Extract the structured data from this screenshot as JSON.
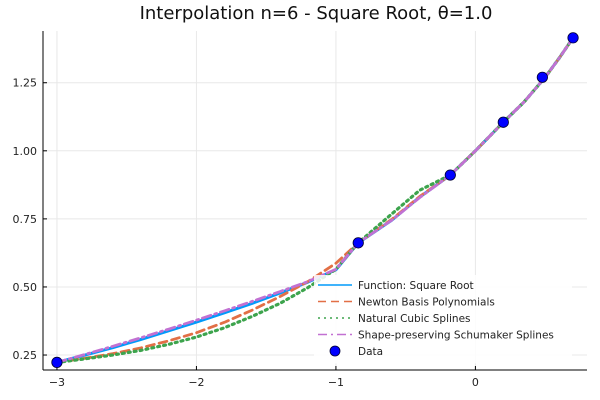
{
  "chart_data": {
    "type": "line",
    "title": "Interpolation n=6 - Square Root, θ=1.0",
    "xlabel": "",
    "ylabel": "",
    "xlim": [
      -3.1,
      0.8
    ],
    "ylim": [
      0.195,
      1.44
    ],
    "grid": true,
    "legend_position": "bottom-right",
    "x_ticks": [
      -3,
      -2,
      -1,
      0
    ],
    "x_tick_labels": [
      "−3",
      "−2",
      "−1",
      "0"
    ],
    "y_ticks": [
      0.25,
      0.5,
      0.75,
      1.0,
      1.25
    ],
    "y_tick_labels": [
      "0.25",
      "0.50",
      "0.75",
      "1.00",
      "1.25"
    ],
    "series": [
      {
        "name": "Function: Square Root",
        "color": "#009AFA",
        "style": "solid",
        "x": [
          -3.0,
          -2.8,
          -2.6,
          -2.4,
          -2.2,
          -2.0,
          -1.8,
          -1.6,
          -1.4,
          -1.2,
          -1.0,
          -0.84,
          -0.6,
          -0.4,
          -0.18,
          0.0,
          0.2,
          0.35,
          0.5,
          0.6,
          0.7
        ],
        "y": [
          0.223,
          0.25,
          0.277,
          0.307,
          0.339,
          0.371,
          0.405,
          0.44,
          0.478,
          0.518,
          0.563,
          0.662,
          0.745,
          0.83,
          0.911,
          1.0,
          1.105,
          1.18,
          1.27,
          1.34,
          1.415
        ]
      },
      {
        "name": "Newton Basis Polynomials",
        "color": "#E26F46",
        "style": "dashed",
        "x": [
          -3.0,
          -2.8,
          -2.6,
          -2.4,
          -2.2,
          -2.0,
          -1.8,
          -1.6,
          -1.4,
          -1.2,
          -1.0,
          -0.84,
          -0.6,
          -0.4,
          -0.18,
          0.0,
          0.2,
          0.35,
          0.5,
          0.6,
          0.7
        ],
        "y": [
          0.223,
          0.238,
          0.255,
          0.276,
          0.302,
          0.332,
          0.37,
          0.415,
          0.465,
          0.52,
          0.587,
          0.662,
          0.748,
          0.832,
          0.911,
          1.0,
          1.105,
          1.18,
          1.27,
          1.34,
          1.415
        ]
      },
      {
        "name": "Natural Cubic Splines",
        "color": "#3DA44D",
        "style": "dotted",
        "x": [
          -3.0,
          -2.8,
          -2.6,
          -2.4,
          -2.2,
          -2.0,
          -1.8,
          -1.6,
          -1.4,
          -1.2,
          -1.0,
          -0.84,
          -0.6,
          -0.4,
          -0.18,
          0.0,
          0.2,
          0.35,
          0.5,
          0.6,
          0.7
        ],
        "y": [
          0.223,
          0.236,
          0.25,
          0.267,
          0.289,
          0.316,
          0.35,
          0.392,
          0.44,
          0.498,
          0.565,
          0.662,
          0.768,
          0.855,
          0.911,
          1.0,
          1.105,
          1.18,
          1.27,
          1.34,
          1.415
        ]
      },
      {
        "name": "Shape-preserving Schumaker Splines",
        "color": "#C271D2",
        "style": "dashdot",
        "x": [
          -3.0,
          -2.8,
          -2.6,
          -2.4,
          -2.2,
          -2.0,
          -1.8,
          -1.6,
          -1.4,
          -1.2,
          -1.0,
          -0.84,
          -0.6,
          -0.4,
          -0.18,
          0.0,
          0.2,
          0.35,
          0.5,
          0.6,
          0.7
        ],
        "y": [
          0.223,
          0.252,
          0.282,
          0.313,
          0.345,
          0.378,
          0.412,
          0.447,
          0.483,
          0.52,
          0.565,
          0.662,
          0.745,
          0.828,
          0.911,
          1.0,
          1.105,
          1.18,
          1.27,
          1.34,
          1.415
        ]
      }
    ],
    "points": {
      "name": "Data",
      "color": "#0000FF",
      "x": [
        -3.0,
        -0.84,
        -0.18,
        0.2,
        0.48,
        0.7
      ],
      "y": [
        0.223,
        0.662,
        0.911,
        1.105,
        1.27,
        1.415
      ]
    }
  }
}
